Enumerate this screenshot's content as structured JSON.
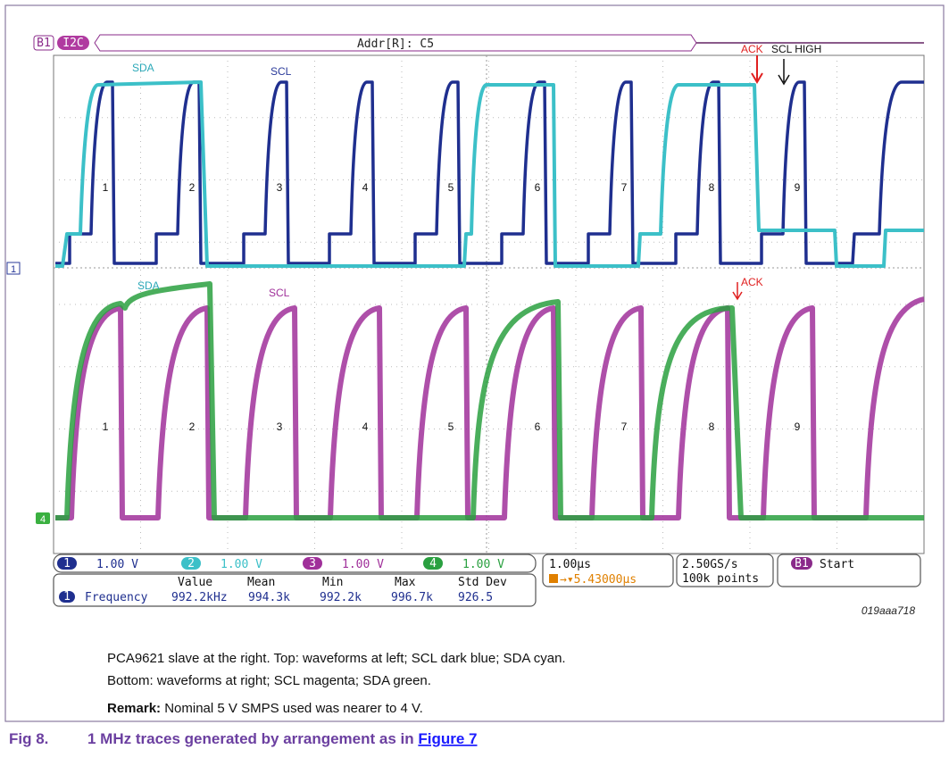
{
  "scope": {
    "bus_label": "B1",
    "protocol": "I2C",
    "decode": "Addr[R]: C5",
    "channel_marker": "1",
    "ground_marker": "4",
    "top": {
      "ack": "ACK",
      "scl_high": "SCL HIGH",
      "sda": "SDA",
      "scl": "SCL",
      "pulses": [
        "1",
        "2",
        "3",
        "4",
        "5",
        "6",
        "7",
        "8",
        "9"
      ]
    },
    "bottom": {
      "sda": "SDA",
      "scl": "SCL",
      "ack": "ACK",
      "pulses": [
        "1",
        "2",
        "3",
        "4",
        "5",
        "6",
        "7",
        "8",
        "9"
      ]
    },
    "status": {
      "channels": [
        {
          "number": "1",
          "scale": "1.00 V"
        },
        {
          "number": "2",
          "scale": "1.00 V"
        },
        {
          "number": "3",
          "scale": "1.00 V"
        },
        {
          "number": "4",
          "scale": "1.00 V"
        }
      ],
      "timebase": "1.00µs",
      "trigger": "→▾5.43000µs",
      "sample_rate": "2.50GS/s",
      "record_length": "100k points",
      "bus": "B1",
      "trigger_state": "Start"
    },
    "measurement": {
      "headers": [
        "Value",
        "Mean",
        "Min",
        "Max",
        "Std Dev"
      ],
      "channel": "1",
      "name": "Frequency",
      "values": [
        "992.2kHz",
        "994.3k",
        "992.2k",
        "996.7k",
        "926.5"
      ]
    }
  },
  "figure_id": "019aaa718",
  "description": {
    "lines": [
      "PCA9621 slave at the right. Top: waveforms at left; SCL dark blue; SDA cyan.",
      "Bottom: waveforms at right; SCL magenta; SDA green."
    ],
    "remark_label": "Remark:",
    "remark_text": "Nominal 5 V SMPS used was nearer to 4 V."
  },
  "caption": {
    "number": "Fig 8.",
    "text": "1 MHz traces generated by arrangement as in",
    "link": "Figure 7"
  }
}
